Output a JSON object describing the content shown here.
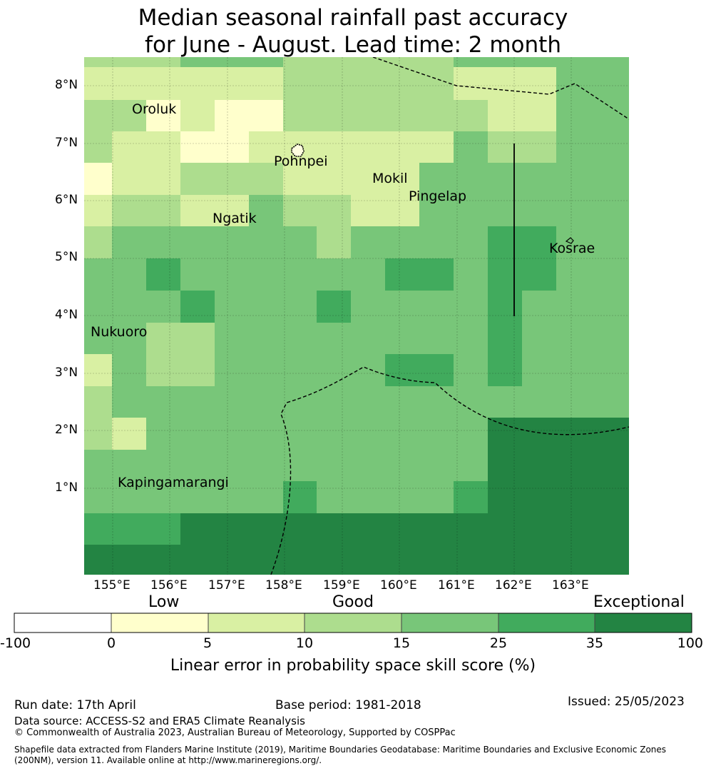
{
  "title": {
    "line1": "Median seasonal rainfall past accuracy",
    "line2": "for June - August. Lead time: 2 month"
  },
  "map": {
    "lat_labels": [
      "8°N",
      "7°N",
      "6°N",
      "5°N",
      "4°N",
      "3°N",
      "2°N",
      "1°N"
    ],
    "lon_labels": [
      "155°E",
      "156°E",
      "157°E",
      "158°E",
      "159°E",
      "160°E",
      "161°E",
      "162°E",
      "163°E"
    ],
    "colors": {
      "c0": "#ffffcc",
      "c1": "#d9f0a3",
      "c2": "#addd8e",
      "c3": "#78c679",
      "c4": "#41ab5d",
      "c5": "#238443"
    },
    "grid_rows": [
      "222333222223333",
      "111111222221113",
      "220100222222113",
      "211001111113223",
      "011222111133333",
      "122113221133333",
      "233333323333443",
      "334333333443443",
      "333433343333433",
      "332233333333433",
      "132233333443433",
      "233333333333333",
      "213333333333555",
      "333333333333555",
      "333333433334555",
      "444555555555555",
      "555555555555555"
    ],
    "places": [
      "Oroluk",
      "Pohnpei",
      "Mokil",
      "Pingelap",
      "Ngatik",
      "Kosrae",
      "Nukuoro",
      "Kapingamarangi"
    ]
  },
  "colorbar": {
    "categories": [
      "Low",
      "Good",
      "Exceptional"
    ],
    "ticks": [
      "-100",
      "0",
      "5",
      "10",
      "15",
      "25",
      "35",
      "100"
    ],
    "label": "Linear error in probability space skill score (%)"
  },
  "footer": {
    "run_date": "Run date: 17th April",
    "base_period": "Base period: 1981-2018",
    "issued": "Issued: 25/05/2023",
    "data_source": "Data source: ACCESS-S2 and ERA5 Climate Reanalysis",
    "copyright": "© Commonwealth of Australia 2023, Australian Bureau of Meteorology, Supported by COSPPac",
    "shapefile": "Shapefile data extracted from Flanders Marine Institute (2019), Maritime Boundaries Geodatabase: Maritime Boundaries and Exclusive Economic Zones (200NM), version 11. Available online at http://www.marineregions.org/."
  }
}
